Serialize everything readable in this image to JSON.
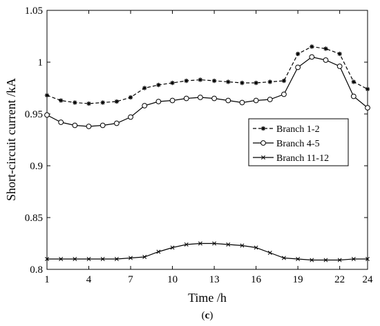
{
  "chart_data": {
    "type": "line",
    "xlabel": "Time /h",
    "ylabel": "Short-circuit current /kA",
    "xlim": [
      1,
      24
    ],
    "ylim": [
      0.8,
      1.05
    ],
    "xticks": [
      1,
      4,
      7,
      10,
      13,
      16,
      19,
      22,
      24
    ],
    "yticks": [
      0.8,
      0.85,
      0.9,
      0.95,
      1,
      1.05
    ],
    "ytick_labels": [
      "0.8",
      "0.85",
      "0.9",
      "0.95",
      "1",
      "1.05"
    ],
    "grid": false,
    "legend_position": "right",
    "caption_prefix": "(",
    "caption_label": "c",
    "caption_suffix": ")",
    "x": [
      1,
      2,
      3,
      4,
      5,
      6,
      7,
      8,
      9,
      10,
      11,
      12,
      13,
      14,
      15,
      16,
      17,
      18,
      19,
      20,
      21,
      22,
      23,
      24
    ],
    "series": [
      {
        "name": "Branch 1-2",
        "marker": "asterisk",
        "linestyle": "dashed",
        "color": "#000000",
        "values": [
          0.968,
          0.963,
          0.961,
          0.96,
          0.961,
          0.962,
          0.966,
          0.975,
          0.978,
          0.98,
          0.982,
          0.983,
          0.982,
          0.981,
          0.98,
          0.98,
          0.981,
          0.982,
          1.008,
          1.015,
          1.013,
          1.008,
          0.981,
          0.974
        ]
      },
      {
        "name": "Branch 4-5",
        "marker": "circle",
        "linestyle": "solid",
        "color": "#000000",
        "values": [
          0.949,
          0.942,
          0.939,
          0.938,
          0.939,
          0.941,
          0.947,
          0.958,
          0.962,
          0.963,
          0.965,
          0.966,
          0.965,
          0.963,
          0.961,
          0.963,
          0.964,
          0.969,
          0.995,
          1.005,
          1.002,
          0.996,
          0.967,
          0.956
        ]
      },
      {
        "name": "Branch 11-12",
        "marker": "x",
        "linestyle": "solid",
        "color": "#000000",
        "values": [
          0.81,
          0.81,
          0.81,
          0.81,
          0.81,
          0.81,
          0.811,
          0.812,
          0.817,
          0.821,
          0.824,
          0.825,
          0.825,
          0.824,
          0.823,
          0.821,
          0.816,
          0.811,
          0.81,
          0.809,
          0.809,
          0.809,
          0.81,
          0.81
        ]
      }
    ]
  }
}
